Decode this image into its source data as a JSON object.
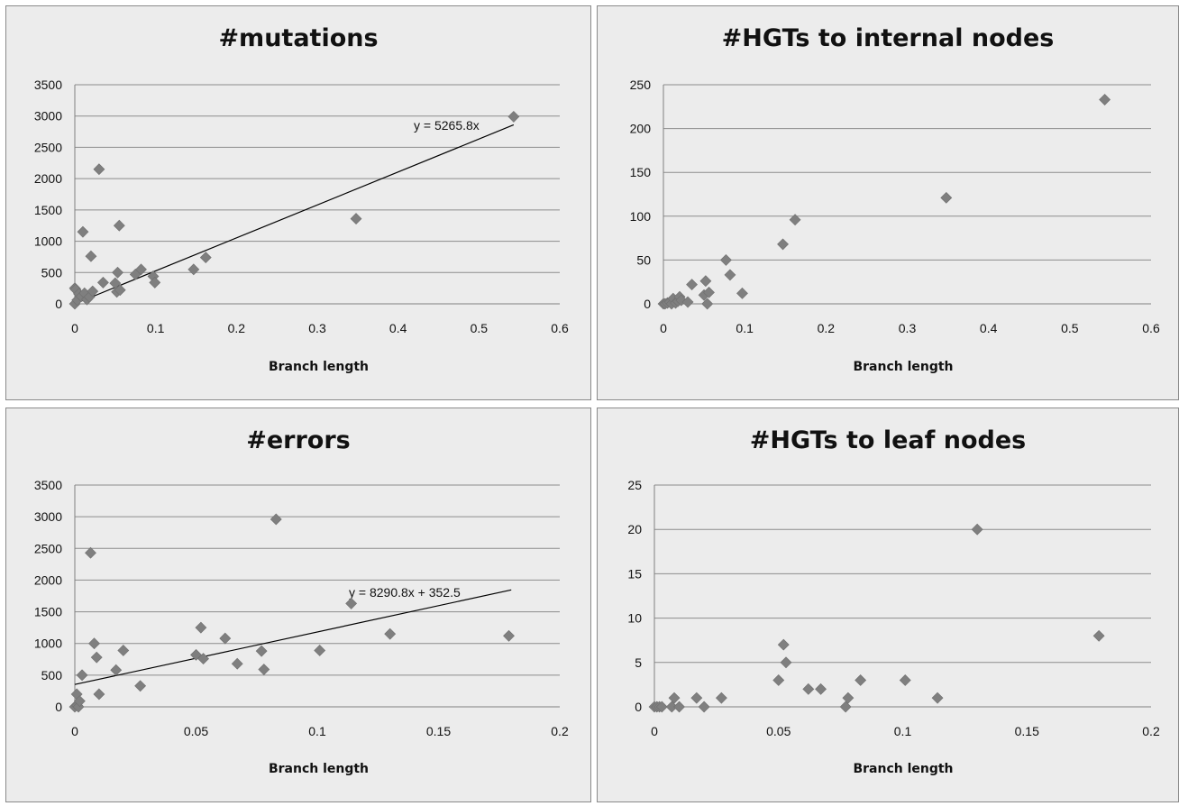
{
  "chart_data": [
    {
      "type": "scatter",
      "title": "#mutations",
      "xlabel": "Branch length",
      "ylabel": "",
      "xlim": [
        0,
        0.6
      ],
      "ylim": [
        0,
        3500
      ],
      "xticks": [
        "0",
        "0.1",
        "0.2",
        "0.3",
        "0.4",
        "0.5",
        "0.6"
      ],
      "yticks": [
        "0",
        "500",
        "1000",
        "1500",
        "2000",
        "2500",
        "3000",
        "3500"
      ],
      "grid": true,
      "marker_color": "#7f7f7f",
      "points": [
        [
          0.0,
          0
        ],
        [
          0.0,
          250
        ],
        [
          0.001,
          230
        ],
        [
          0.003,
          60
        ],
        [
          0.005,
          160
        ],
        [
          0.008,
          120
        ],
        [
          0.01,
          1150
        ],
        [
          0.012,
          170
        ],
        [
          0.015,
          70
        ],
        [
          0.018,
          110
        ],
        [
          0.02,
          760
        ],
        [
          0.022,
          200
        ],
        [
          0.03,
          2150
        ],
        [
          0.035,
          340
        ],
        [
          0.05,
          330
        ],
        [
          0.052,
          190
        ],
        [
          0.053,
          500
        ],
        [
          0.055,
          1250
        ],
        [
          0.056,
          220
        ],
        [
          0.075,
          470
        ],
        [
          0.082,
          550
        ],
        [
          0.097,
          440
        ],
        [
          0.099,
          340
        ],
        [
          0.147,
          550
        ],
        [
          0.162,
          740
        ],
        [
          0.348,
          1360
        ],
        [
          0.543,
          2990
        ]
      ],
      "trendline": {
        "label": "y = 5265.8x",
        "slope": 5265.8,
        "intercept": 0,
        "x_range": [
          0,
          0.543
        ]
      }
    },
    {
      "type": "scatter",
      "title": "#HGTs to internal nodes",
      "xlabel": "Branch length",
      "ylabel": "",
      "xlim": [
        0,
        0.6
      ],
      "ylim": [
        0,
        250
      ],
      "xticks": [
        "0",
        "0.1",
        "0.2",
        "0.3",
        "0.4",
        "0.5",
        "0.6"
      ],
      "yticks": [
        "0",
        "50",
        "100",
        "150",
        "200",
        "250"
      ],
      "grid": true,
      "marker_color": "#7f7f7f",
      "points": [
        [
          0.0,
          0
        ],
        [
          0.002,
          0
        ],
        [
          0.005,
          1
        ],
        [
          0.008,
          2
        ],
        [
          0.01,
          0
        ],
        [
          0.012,
          6
        ],
        [
          0.015,
          1
        ],
        [
          0.018,
          3
        ],
        [
          0.02,
          8
        ],
        [
          0.022,
          4
        ],
        [
          0.03,
          2
        ],
        [
          0.035,
          22
        ],
        [
          0.05,
          10
        ],
        [
          0.052,
          26
        ],
        [
          0.054,
          0
        ],
        [
          0.056,
          13
        ],
        [
          0.077,
          50
        ],
        [
          0.082,
          33
        ],
        [
          0.097,
          12
        ],
        [
          0.147,
          68
        ],
        [
          0.162,
          96
        ],
        [
          0.348,
          121
        ],
        [
          0.543,
          233
        ]
      ]
    },
    {
      "type": "scatter",
      "title": "#errors",
      "xlabel": "Branch length",
      "ylabel": "",
      "xlim": [
        0,
        0.2
      ],
      "ylim": [
        0,
        3500
      ],
      "xticks": [
        "0",
        "0.05",
        "0.1",
        "0.15",
        "0.2"
      ],
      "yticks": [
        "0",
        "500",
        "1000",
        "1500",
        "2000",
        "2500",
        "3000",
        "3500"
      ],
      "grid": true,
      "marker_color": "#7f7f7f",
      "points": [
        [
          0.0,
          0
        ],
        [
          0.0008,
          200
        ],
        [
          0.001,
          20
        ],
        [
          0.0015,
          0
        ],
        [
          0.002,
          90
        ],
        [
          0.003,
          500
        ],
        [
          0.0065,
          2430
        ],
        [
          0.008,
          1000
        ],
        [
          0.009,
          780
        ],
        [
          0.01,
          200
        ],
        [
          0.017,
          580
        ],
        [
          0.02,
          890
        ],
        [
          0.027,
          330
        ],
        [
          0.05,
          820
        ],
        [
          0.052,
          1250
        ],
        [
          0.053,
          760
        ],
        [
          0.062,
          1080
        ],
        [
          0.067,
          680
        ],
        [
          0.077,
          880
        ],
        [
          0.078,
          590
        ],
        [
          0.083,
          2960
        ],
        [
          0.101,
          890
        ],
        [
          0.114,
          1630
        ],
        [
          0.13,
          1150
        ],
        [
          0.179,
          1120
        ]
      ],
      "trendline": {
        "label": "y = 8290.8x + 352.5",
        "slope": 8290.8,
        "intercept": 352.5,
        "x_range": [
          0,
          0.18
        ]
      }
    },
    {
      "type": "scatter",
      "title": "#HGTs to leaf nodes",
      "xlabel": "Branch length",
      "ylabel": "",
      "xlim": [
        0,
        0.2
      ],
      "ylim": [
        0,
        25
      ],
      "xticks": [
        "0",
        "0.05",
        "0.1",
        "0.15",
        "0.2"
      ],
      "yticks": [
        "0",
        "5",
        "10",
        "15",
        "20",
        "25"
      ],
      "grid": true,
      "marker_color": "#7f7f7f",
      "points": [
        [
          0.0,
          0
        ],
        [
          0.001,
          0
        ],
        [
          0.002,
          0
        ],
        [
          0.003,
          0
        ],
        [
          0.007,
          0
        ],
        [
          0.008,
          1
        ],
        [
          0.01,
          0
        ],
        [
          0.017,
          1
        ],
        [
          0.02,
          0
        ],
        [
          0.027,
          1
        ],
        [
          0.05,
          3
        ],
        [
          0.052,
          7
        ],
        [
          0.053,
          5
        ],
        [
          0.062,
          2
        ],
        [
          0.067,
          2
        ],
        [
          0.077,
          0
        ],
        [
          0.078,
          1
        ],
        [
          0.083,
          3
        ],
        [
          0.101,
          3
        ],
        [
          0.114,
          1
        ],
        [
          0.13,
          20
        ],
        [
          0.179,
          8
        ]
      ]
    }
  ]
}
